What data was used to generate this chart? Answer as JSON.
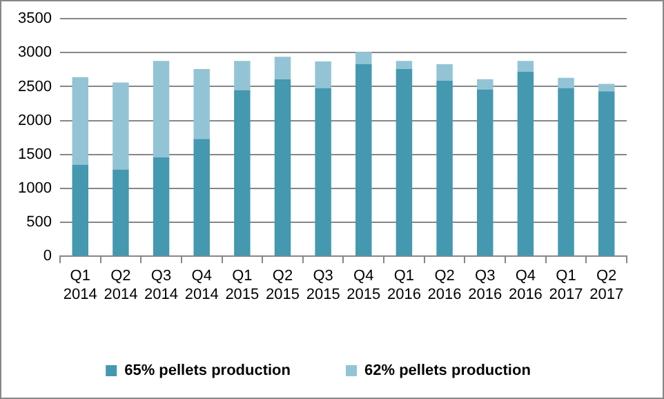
{
  "chart_data": {
    "type": "bar",
    "stacked": true,
    "categories": [
      "Q1 2014",
      "Q2 2014",
      "Q3 2014",
      "Q4 2014",
      "Q1 2015",
      "Q2 2015",
      "Q3 2015",
      "Q4 2015",
      "Q1 2016",
      "Q2 2016",
      "Q3 2016",
      "Q4 2016",
      "Q1 2017",
      "Q2 2017"
    ],
    "series": [
      {
        "name": "65% pellets production",
        "color": "#4498b0",
        "values": [
          1350,
          1280,
          1460,
          1730,
          2450,
          2610,
          2480,
          2830,
          2760,
          2590,
          2460,
          2720,
          2480,
          2430
        ]
      },
      {
        "name": "62% pellets production",
        "color": "#93c4d6",
        "values": [
          1290,
          1280,
          1420,
          1030,
          430,
          330,
          390,
          180,
          120,
          240,
          150,
          160,
          150,
          110
        ]
      }
    ],
    "ylim": [
      0,
      3500
    ],
    "yticks": [
      0,
      500,
      1000,
      1500,
      2000,
      2500,
      3000,
      3500
    ],
    "grid": "y",
    "legend": "bottom"
  }
}
